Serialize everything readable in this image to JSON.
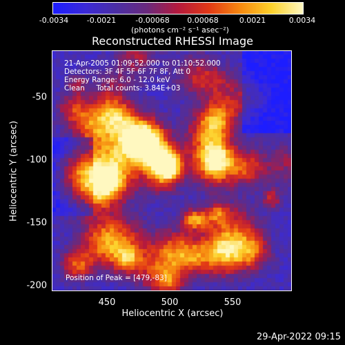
{
  "colorbar": {
    "ticks": [
      "-0.0034",
      "-0.0021",
      "-0.00068",
      "0.00068",
      "0.0021",
      "0.0034"
    ],
    "units": "(photons cm⁻² s⁻¹ asec⁻²)",
    "colors": [
      "#1d1dff",
      "#3b2ad8",
      "#4b2fa6",
      "#6a2a7e",
      "#b51a3e",
      "#e33a16",
      "#f78a10",
      "#fdd22c",
      "#fff8c0"
    ]
  },
  "title": "Reconstructed RHESSI Image",
  "info": {
    "time": "21-Apr-2005 01:09:52.000 to 01:10:52.000",
    "detectors": "Detectors: 3F 4F 5F 6F 7F 8F, Att 0",
    "energy": "Energy Range: 6.0 - 12.0 keV",
    "algorithm": "Clean     Total counts: 3.84E+03"
  },
  "peak": "Position of Peak = [479,-83]",
  "axes": {
    "xlabel": "Heliocentric X (arcsec)",
    "ylabel": "Heliocentric Y (arcsec)",
    "xticks": [
      "450",
      "500",
      "550"
    ],
    "yticks": [
      "-50",
      "-100",
      "-150",
      "-200"
    ]
  },
  "date": "29-Apr-2022 09:15"
}
